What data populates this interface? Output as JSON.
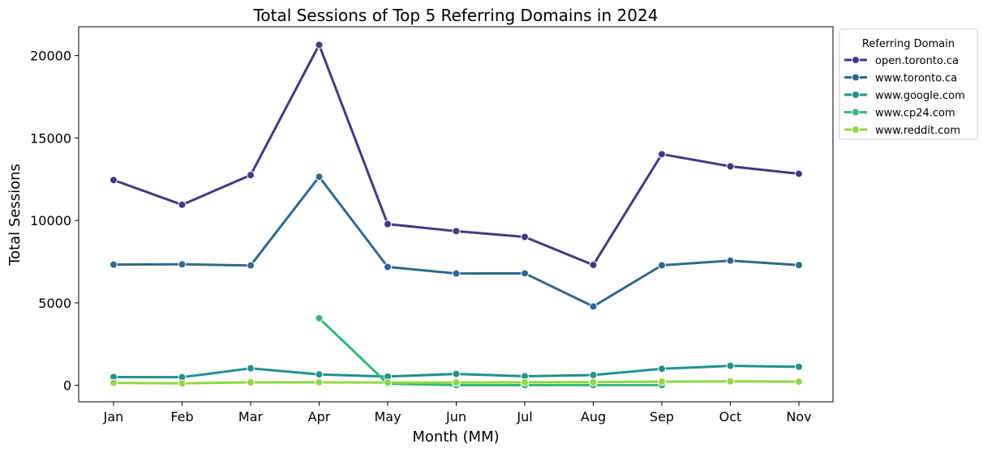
{
  "chart_data": {
    "type": "line",
    "title": "Total Sessions of Top 5 Referring Domains in 2024",
    "xlabel": "Month (MM)",
    "ylabel": "Total Sessions",
    "categories": [
      "Jan",
      "Feb",
      "Mar",
      "Apr",
      "May",
      "Jun",
      "Jul",
      "Aug",
      "Sep",
      "Oct",
      "Nov"
    ],
    "ylim": [
      -1000,
      21750
    ],
    "yticks": [
      0,
      5000,
      10000,
      15000,
      20000
    ],
    "grid": false,
    "legend": {
      "title": "Referring Domain",
      "position": "outside-top-right"
    },
    "series": [
      {
        "name": "open.toronto.ca",
        "color": "#443983",
        "values": [
          12450,
          10950,
          12750,
          20650,
          9780,
          9350,
          9000,
          7300,
          14020,
          13280,
          12830
        ]
      },
      {
        "name": "www.toronto.ca",
        "color": "#31688e",
        "values": [
          7320,
          7340,
          7270,
          12650,
          7180,
          6780,
          6790,
          4780,
          7280,
          7560,
          7290
        ]
      },
      {
        "name": "www.google.com",
        "color": "#21918c",
        "values": [
          500,
          490,
          1030,
          660,
          530,
          690,
          550,
          620,
          1000,
          1180,
          1120
        ]
      },
      {
        "name": "www.cp24.com",
        "color": "#35b779",
        "values": [
          null,
          null,
          null,
          4070,
          100,
          10,
          10,
          10,
          10,
          null,
          null
        ]
      },
      {
        "name": "www.reddit.com",
        "color": "#90d743",
        "values": [
          150,
          120,
          180,
          180,
          170,
          170,
          180,
          190,
          220,
          240,
          220
        ]
      }
    ]
  }
}
